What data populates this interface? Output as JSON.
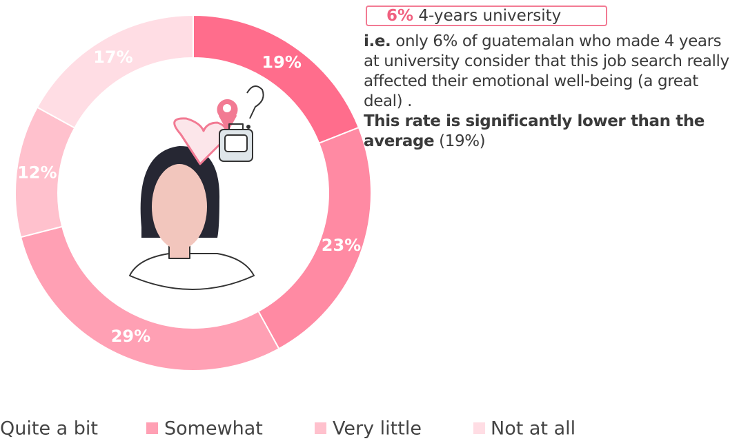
{
  "chart_data": {
    "type": "donut",
    "categories": [
      null,
      "Quite a bit",
      "Somewhat",
      "Very little",
      "Not at all"
    ],
    "values": [
      19,
      23,
      29,
      12,
      17
    ],
    "value_labels": [
      "19%",
      "23%",
      "29%",
      "12%",
      "17%"
    ],
    "colors": [
      "#ff6d8c",
      "#ff8aa3",
      "#ffa0b4",
      "#ffc1cd",
      "#ffdde4"
    ],
    "legend": "bottom",
    "annotation": {
      "tag_value": "6%",
      "tag_label": "4-years university",
      "lead": "i.e.",
      "text": "only 6% of guatemalan who made 4 years at university consider that this job search really affected their emotional well-being (a great deal) .",
      "emphasis": "This rate is significantly lower than the average",
      "tail": "(19%)"
    }
  }
}
